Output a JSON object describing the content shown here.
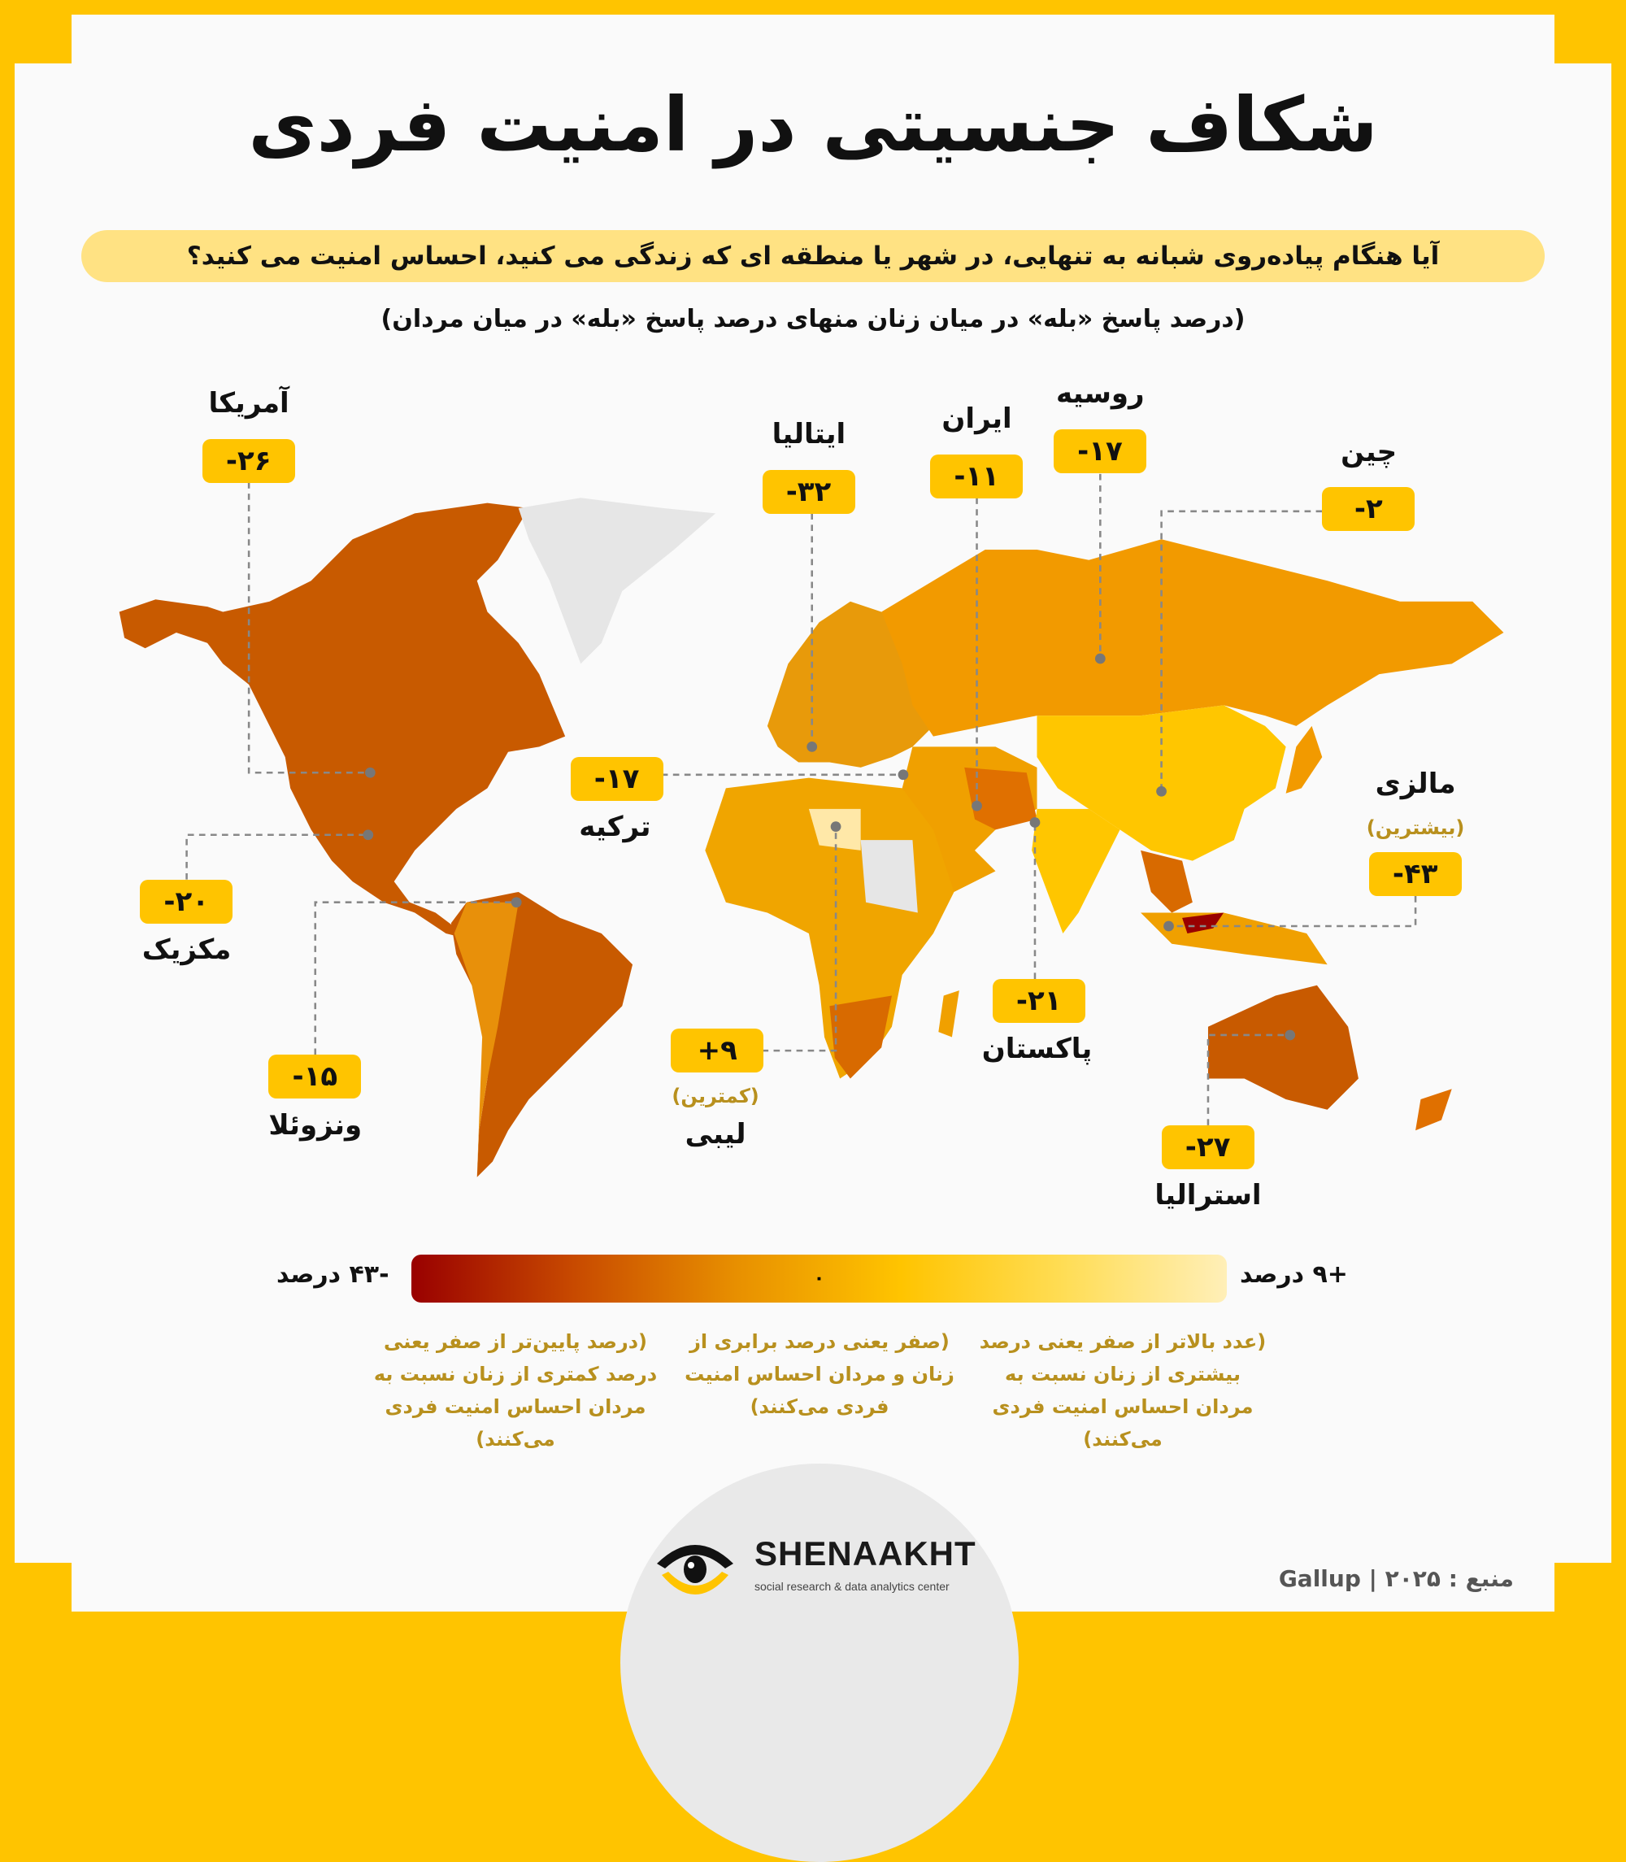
{
  "header": {
    "title": "شکاف جنسیتی در امنیت فردی",
    "question": "آیا هنگام پیاده‌روی شبانه به تنهایی، در شهر یا منطقه ای که زندگی می کنید، احساس امنیت می کنید؟",
    "subtitle": "(درصد پاسخ «بله» در میان زنان منهای درصد پاسخ «بله» در میان مردان)"
  },
  "chart_data": {
    "type": "choropleth-map",
    "title": "شکاف جنسیتی در امنیت فردی",
    "value_range": [
      -43,
      9
    ],
    "points": [
      {
        "country": "آمریکا",
        "label": "-۲۶",
        "value": -26,
        "note": ""
      },
      {
        "country": "ایتالیا",
        "label": "-۳۲",
        "value": -32,
        "note": ""
      },
      {
        "country": "ایران",
        "label": "-۱۱",
        "value": -11,
        "note": ""
      },
      {
        "country": "روسیه",
        "label": "-۱۷",
        "value": -17,
        "note": ""
      },
      {
        "country": "چین",
        "label": "-۲",
        "value": -2,
        "note": ""
      },
      {
        "country": "مالزی",
        "label": "-۴۳",
        "value": -43,
        "note": "(بیشترین)"
      },
      {
        "country": "ترکیه",
        "label": "-۱۷",
        "value": -17,
        "note": ""
      },
      {
        "country": "مکزیک",
        "label": "-۲۰",
        "value": -20,
        "note": ""
      },
      {
        "country": "ونزوئلا",
        "label": "-۱۵",
        "value": -15,
        "note": ""
      },
      {
        "country": "لیبی",
        "label": "+۹",
        "value": 9,
        "note": "(کمترین)"
      },
      {
        "country": "پاکستان",
        "label": "-۲۱",
        "value": -21,
        "note": ""
      },
      {
        "country": "استرالیا",
        "label": "-۲۷",
        "value": -27,
        "note": ""
      }
    ],
    "colors": {
      "min": "#990000",
      "mid": "#FFC400",
      "max": "#FFEFB8",
      "no_data": "#E6E6E6"
    }
  },
  "legend": {
    "min_label": "-۴۳ درصد",
    "zero_label": "۰",
    "max_label": "+۹ درصد",
    "notes": [
      "(درصد پایین‌تر از صفر یعنی درصد کمتری از زنان نسبت به مردان احساس امنیت فردی می‌کنند)",
      "(صفر یعنی درصد برابری از زنان و مردان احساس امنیت فردی می‌کنند)",
      "(عدد بالاتر از صفر یعنی درصد بیشتری از زنان نسبت به مردان احساس امنیت فردی می‌کنند)"
    ]
  },
  "footer": {
    "brand": "SHENAAKHT",
    "tagline": "social research & data analytics center",
    "source": "منبع : ۲۰۲۵ | Gallup"
  },
  "theme": {
    "accent": "#FFC400"
  }
}
